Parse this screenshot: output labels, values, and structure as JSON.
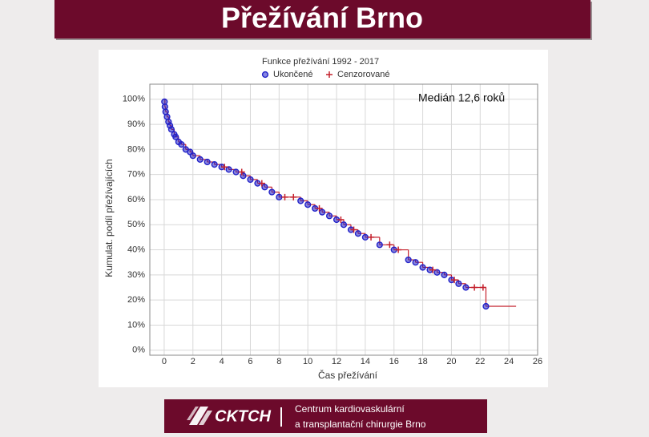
{
  "header": {
    "title": "Přežívání Brno"
  },
  "footer": {
    "logo": "CKTCH",
    "lines": [
      "Centrum kardiovaskulární",
      "a transplantační chirurgie Brno"
    ]
  },
  "chart_data": {
    "type": "survival",
    "legend_title": "Funkce přežívání 1992 - 2017",
    "annotation": "Medián 12,6 roků",
    "x_label": "Čas přežívání",
    "y_label": "Kumulat. podíl přežívajících",
    "xlim": [
      -1,
      26
    ],
    "xticks": [
      0,
      2,
      4,
      6,
      8,
      10,
      12,
      14,
      16,
      18,
      20,
      22,
      24,
      26
    ],
    "ylim": [
      -2,
      106
    ],
    "yticks": [
      {
        "value": 0,
        "label": "0%"
      },
      {
        "value": 10,
        "label": "10%"
      },
      {
        "value": 20,
        "label": "20%"
      },
      {
        "value": 30,
        "label": "30%"
      },
      {
        "value": 40,
        "label": "40%"
      },
      {
        "value": 50,
        "label": "50%"
      },
      {
        "value": 60,
        "label": "60%"
      },
      {
        "value": 70,
        "label": "70%"
      },
      {
        "value": 80,
        "label": "80%"
      },
      {
        "value": 90,
        "label": "90%"
      },
      {
        "value": 100,
        "label": "100%"
      }
    ],
    "grid": true,
    "curve": {
      "color": "#c4202c",
      "x": [
        0,
        0.05,
        0.1,
        0.2,
        0.3,
        0.4,
        0.5,
        0.7,
        0.8,
        1,
        1.2,
        1.5,
        1.8,
        2,
        2.5,
        3,
        3.5,
        4,
        4.5,
        5,
        5.5,
        6,
        6.5,
        7,
        7.5,
        8,
        9.5,
        10,
        10.5,
        11,
        11.5,
        12,
        12.5,
        13,
        13.5,
        14,
        15,
        16,
        17,
        17.5,
        18,
        18.5,
        19,
        19.5,
        20,
        20.5,
        21,
        22.4,
        24.5
      ],
      "values": [
        100,
        97,
        95,
        93,
        91,
        89.5,
        88,
        86,
        85,
        83,
        82,
        80,
        79,
        77.5,
        76,
        75,
        74,
        73,
        72,
        71,
        69.5,
        68,
        66.5,
        65,
        63,
        61,
        59.5,
        58,
        56.5,
        55,
        53.5,
        52,
        50,
        48,
        46.5,
        45,
        42,
        40,
        36,
        35,
        33,
        32,
        31,
        30,
        28,
        26.5,
        25,
        17.5,
        17.5
      ]
    },
    "series": [
      {
        "name": "Ukončené",
        "marker": "circle",
        "color": "#2323c8",
        "x": [
          0.02,
          0.05,
          0.1,
          0.2,
          0.3,
          0.4,
          0.5,
          0.7,
          0.8,
          1,
          1.2,
          1.5,
          1.8,
          2,
          2.5,
          3,
          3.5,
          4,
          4.5,
          5,
          5.5,
          6,
          6.5,
          7,
          7.5,
          8,
          9.5,
          10,
          10.5,
          11,
          11.5,
          12,
          12.5,
          13,
          13.5,
          14,
          15,
          16,
          17,
          17.5,
          18,
          18.5,
          19,
          19.5,
          20,
          20.5,
          21,
          22.4
        ],
        "values": [
          99,
          97,
          95,
          93,
          91,
          89.5,
          88,
          86,
          85,
          83,
          82,
          80,
          79,
          77.5,
          76,
          75,
          74,
          73,
          72,
          71,
          69.5,
          68,
          66.5,
          65,
          63,
          61,
          59.5,
          58,
          56.5,
          55,
          53.5,
          52,
          50,
          48,
          46.5,
          45,
          42,
          40,
          36,
          35,
          33,
          32,
          31,
          30,
          28,
          26.5,
          25,
          17.5
        ]
      },
      {
        "name": "Cenzorované",
        "marker": "plus",
        "color": "#c4202c",
        "x": [
          4.2,
          5.4,
          6.8,
          8.4,
          9,
          10.8,
          12.3,
          13.2,
          14.4,
          15.7,
          16.3,
          18.7,
          20.2,
          21.6,
          22.2
        ],
        "values": [
          73,
          71,
          66.5,
          61,
          61,
          56.5,
          52,
          48,
          45,
          42,
          40,
          32,
          28,
          25,
          25
        ]
      }
    ]
  }
}
